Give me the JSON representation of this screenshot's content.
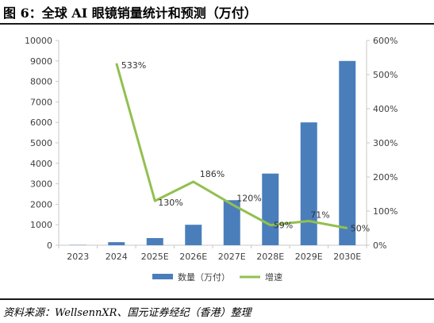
{
  "figure": {
    "title": "图 6：全球 AI 眼镜销量统计和预测（万付）",
    "source": "资料来源：WellsennXR、国元证券经纪（香港）整理"
  },
  "colors": {
    "bar": "#4a7ebb",
    "line": "#92c04f",
    "axis": "#c8c8c8",
    "text": "#404040"
  },
  "chart_data": {
    "type": "bar",
    "categories": [
      "2023",
      "2024",
      "2025E",
      "2026E",
      "2027E",
      "2028E",
      "2029E",
      "2030E"
    ],
    "series": [
      {
        "name": "数量（万付）",
        "type": "bar",
        "axis": "left",
        "values": [
          15,
          150,
          350,
          1000,
          2200,
          3500,
          6000,
          9000
        ]
      },
      {
        "name": "增速",
        "type": "line",
        "axis": "right",
        "values": [
          null,
          533,
          130,
          186,
          120,
          59,
          71,
          50
        ],
        "labels": [
          "",
          "533%",
          "130%",
          "186%",
          "120%",
          "59%",
          "71%",
          "50%"
        ]
      }
    ],
    "y_left": {
      "min": 0,
      "max": 10000,
      "step": 1000,
      "ticks": [
        "0",
        "1000",
        "2000",
        "3000",
        "4000",
        "5000",
        "6000",
        "7000",
        "8000",
        "9000",
        "10000"
      ]
    },
    "y_right": {
      "min": 0,
      "max": 600,
      "step": 100,
      "ticks": [
        "0%",
        "100%",
        "200%",
        "300%",
        "400%",
        "500%",
        "600%"
      ]
    },
    "grid": false,
    "legend": "bottom"
  }
}
